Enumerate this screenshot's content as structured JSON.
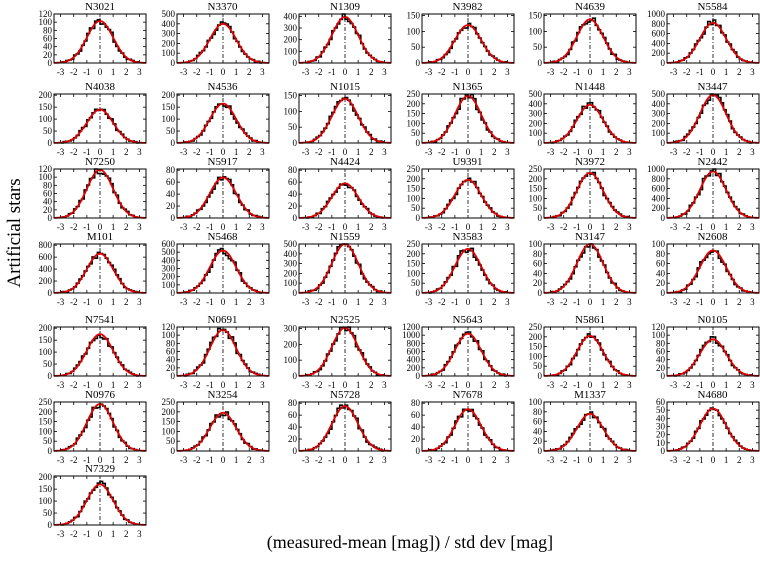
{
  "figure": {
    "ylabel": "Artificial stars",
    "xlabel": "(measured-mean [mag]) / std dev [mag]"
  },
  "colors": {
    "histogram": "#000000",
    "gaussian_fit": "#e00000",
    "zero_line": "#000000"
  },
  "chart_data": {
    "type": "bar",
    "title": "",
    "xlabel": "(measured-mean [mag]) / std dev [mag]",
    "ylabel": "Artificial stars",
    "layout": {
      "columns": 6,
      "rows": 7,
      "grid": false,
      "legend": "none"
    },
    "xlim": [
      -3.5,
      3.5
    ],
    "xticks": [
      "-3",
      "-2",
      "-1",
      "0",
      "1",
      "2",
      "3"
    ],
    "overlay": "Gaussian fit (red) over histogram (black), dash-dot vertical line at x=0",
    "panels": [
      {
        "name": "N3021",
        "yticks": [
          "0",
          "20",
          "40",
          "60",
          "80",
          "100",
          "120"
        ],
        "ymax": 120,
        "peak": 103
      },
      {
        "name": "N3370",
        "yticks": [
          "0",
          "100",
          "200",
          "300",
          "400",
          "500"
        ],
        "ymax": 500,
        "peak": 400
      },
      {
        "name": "N1309",
        "yticks": [
          "0",
          "100",
          "200",
          "300",
          "400"
        ],
        "ymax": 420,
        "peak": 395
      },
      {
        "name": "N3982",
        "yticks": [
          "0",
          "50",
          "100",
          "150"
        ],
        "ymax": 155,
        "peak": 120
      },
      {
        "name": "N4639",
        "yticks": [
          "0",
          "50",
          "100",
          "150"
        ],
        "ymax": 155,
        "peak": 138
      },
      {
        "name": "N5584",
        "yticks": [
          "0",
          "200",
          "400",
          "600",
          "800",
          "1000"
        ],
        "ymax": 1000,
        "peak": 820
      },
      {
        "name": "N4038",
        "yticks": [
          "0",
          "50",
          "100",
          "150",
          "200"
        ],
        "ymax": 205,
        "peak": 140
      },
      {
        "name": "N4536",
        "yticks": [
          "0",
          "50",
          "100",
          "150",
          "200"
        ],
        "ymax": 205,
        "peak": 165
      },
      {
        "name": "N1015",
        "yticks": [
          "0",
          "50",
          "100",
          "150"
        ],
        "ymax": 155,
        "peak": 140
      },
      {
        "name": "N1365",
        "yticks": [
          "0",
          "50",
          "100",
          "150",
          "200",
          "250"
        ],
        "ymax": 250,
        "peak": 240
      },
      {
        "name": "N1448",
        "yticks": [
          "0",
          "100",
          "200",
          "300",
          "400",
          "500"
        ],
        "ymax": 500,
        "peak": 390
      },
      {
        "name": "N3447",
        "yticks": [
          "0",
          "100",
          "200",
          "300",
          "400",
          "500"
        ],
        "ymax": 500,
        "peak": 490
      },
      {
        "name": "N7250",
        "yticks": [
          "0",
          "20",
          "40",
          "60",
          "80",
          "100",
          "120"
        ],
        "ymax": 120,
        "peak": 118
      },
      {
        "name": "N5917",
        "yticks": [
          "0",
          "20",
          "40",
          "60",
          "80"
        ],
        "ymax": 82,
        "peak": 68
      },
      {
        "name": "N4424",
        "yticks": [
          "0",
          "20",
          "40",
          "60",
          "80"
        ],
        "ymax": 82,
        "peak": 58
      },
      {
        "name": "U9391",
        "yticks": [
          "0",
          "50",
          "100",
          "150",
          "200",
          "250"
        ],
        "ymax": 250,
        "peak": 195
      },
      {
        "name": "N3972",
        "yticks": [
          "0",
          "50",
          "100",
          "150",
          "200",
          "250"
        ],
        "ymax": 250,
        "peak": 230
      },
      {
        "name": "N2442",
        "yticks": [
          "0",
          "200",
          "400",
          "600",
          "800",
          "1000"
        ],
        "ymax": 1000,
        "peak": 950
      },
      {
        "name": "M101",
        "yticks": [
          "0",
          "200",
          "400",
          "600",
          "800"
        ],
        "ymax": 820,
        "peak": 660
      },
      {
        "name": "N5468",
        "yticks": [
          "0",
          "100",
          "200",
          "300",
          "400",
          "500",
          "600"
        ],
        "ymax": 600,
        "peak": 520
      },
      {
        "name": "N1559",
        "yticks": [
          "0",
          "100",
          "200",
          "300",
          "400",
          "500"
        ],
        "ymax": 500,
        "peak": 500
      },
      {
        "name": "N3583",
        "yticks": [
          "0",
          "50",
          "100",
          "150",
          "200",
          "250"
        ],
        "ymax": 250,
        "peak": 225
      },
      {
        "name": "N3147",
        "yticks": [
          "0",
          "20",
          "40",
          "60",
          "80",
          "100"
        ],
        "ymax": 100,
        "peak": 100
      },
      {
        "name": "N2608",
        "yticks": [
          "0",
          "20",
          "40",
          "60",
          "80",
          "100"
        ],
        "ymax": 100,
        "peak": 87
      },
      {
        "name": "N7541",
        "yticks": [
          "0",
          "50",
          "100",
          "150",
          "200"
        ],
        "ymax": 205,
        "peak": 175
      },
      {
        "name": "N0691",
        "yticks": [
          "0",
          "20",
          "40",
          "60",
          "80",
          "100",
          "120"
        ],
        "ymax": 120,
        "peak": 113
      },
      {
        "name": "N2525",
        "yticks": [
          "0",
          "100",
          "200",
          "300"
        ],
        "ymax": 310,
        "peak": 305
      },
      {
        "name": "N5643",
        "yticks": [
          "0",
          "200",
          "400",
          "600",
          "800",
          "1000",
          "1200"
        ],
        "ymax": 1200,
        "peak": 1040
      },
      {
        "name": "N5861",
        "yticks": [
          "0",
          "50",
          "100",
          "150",
          "200",
          "250"
        ],
        "ymax": 250,
        "peak": 205
      },
      {
        "name": "N0105",
        "yticks": [
          "0",
          "20",
          "40",
          "60",
          "80",
          "100",
          "120"
        ],
        "ymax": 120,
        "peak": 90
      },
      {
        "name": "N0976",
        "yticks": [
          "0",
          "50",
          "100",
          "150",
          "200",
          "250"
        ],
        "ymax": 250,
        "peak": 240
      },
      {
        "name": "N3254",
        "yticks": [
          "0",
          "50",
          "100",
          "150",
          "200",
          "250"
        ],
        "ymax": 250,
        "peak": 195
      },
      {
        "name": "N5728",
        "yticks": [
          "0",
          "20",
          "40",
          "60",
          "80"
        ],
        "ymax": 82,
        "peak": 75
      },
      {
        "name": "N7678",
        "yticks": [
          "0",
          "20",
          "40",
          "60",
          "80"
        ],
        "ymax": 82,
        "peak": 70
      },
      {
        "name": "M1337",
        "yticks": [
          "0",
          "20",
          "40",
          "60",
          "80",
          "100"
        ],
        "ymax": 100,
        "peak": 76
      },
      {
        "name": "N4680",
        "yticks": [
          "0",
          "10",
          "20",
          "30",
          "40",
          "50",
          "60"
        ],
        "ymax": 60,
        "peak": 52
      },
      {
        "name": "N7329",
        "yticks": [
          "0",
          "50",
          "100",
          "150",
          "200"
        ],
        "ymax": 205,
        "peak": 170
      }
    ]
  }
}
